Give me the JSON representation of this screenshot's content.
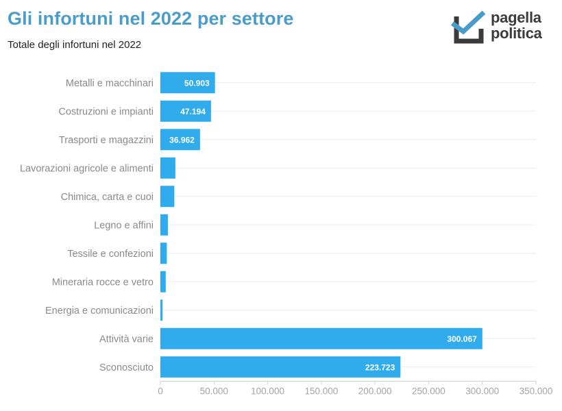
{
  "header": {
    "title": "Gli infortuni nel 2022 per settore",
    "subtitle": "Totale degli infortuni nel 2022"
  },
  "logo": {
    "line1": "pagella",
    "line2": "politica",
    "icon": "checkbox-check-icon"
  },
  "colors": {
    "bar": "#30aced",
    "title": "#4a9cc9",
    "logo_dark": "#3b3b3b",
    "logo_accent": "#4a9cc9"
  },
  "chart_data": {
    "type": "bar",
    "orientation": "horizontal",
    "title": "Gli infortuni nel 2022 per settore",
    "subtitle": "Totale degli infortuni nel 2022",
    "categories": [
      "Metalli e macchinari",
      "Costruzioni e impianti",
      "Trasporti e magazzini",
      "Lavorazioni agricole e alimenti",
      "Chimica, carta e cuoi",
      "Legno e affini",
      "Tessile e confezioni",
      "Mineraria rocce e vetro",
      "Energia e comunicazioni",
      "Attività varie",
      "Sconosciuto"
    ],
    "values": [
      50903,
      47194,
      36962,
      14000,
      13000,
      7000,
      6000,
      5000,
      2000,
      300067,
      223723
    ],
    "value_labels": [
      "50.903",
      "47.194",
      "36.962",
      "",
      "",
      "",
      "",
      "",
      "",
      "300.067",
      "223.723"
    ],
    "xlim": [
      0,
      350000
    ],
    "xticks": [
      0,
      50000,
      100000,
      150000,
      200000,
      250000,
      300000,
      350000
    ],
    "xtick_labels": [
      "0",
      "50.000",
      "100.000",
      "150.000",
      "200.000",
      "250.000",
      "300.000",
      "350.000"
    ],
    "grid": true
  }
}
